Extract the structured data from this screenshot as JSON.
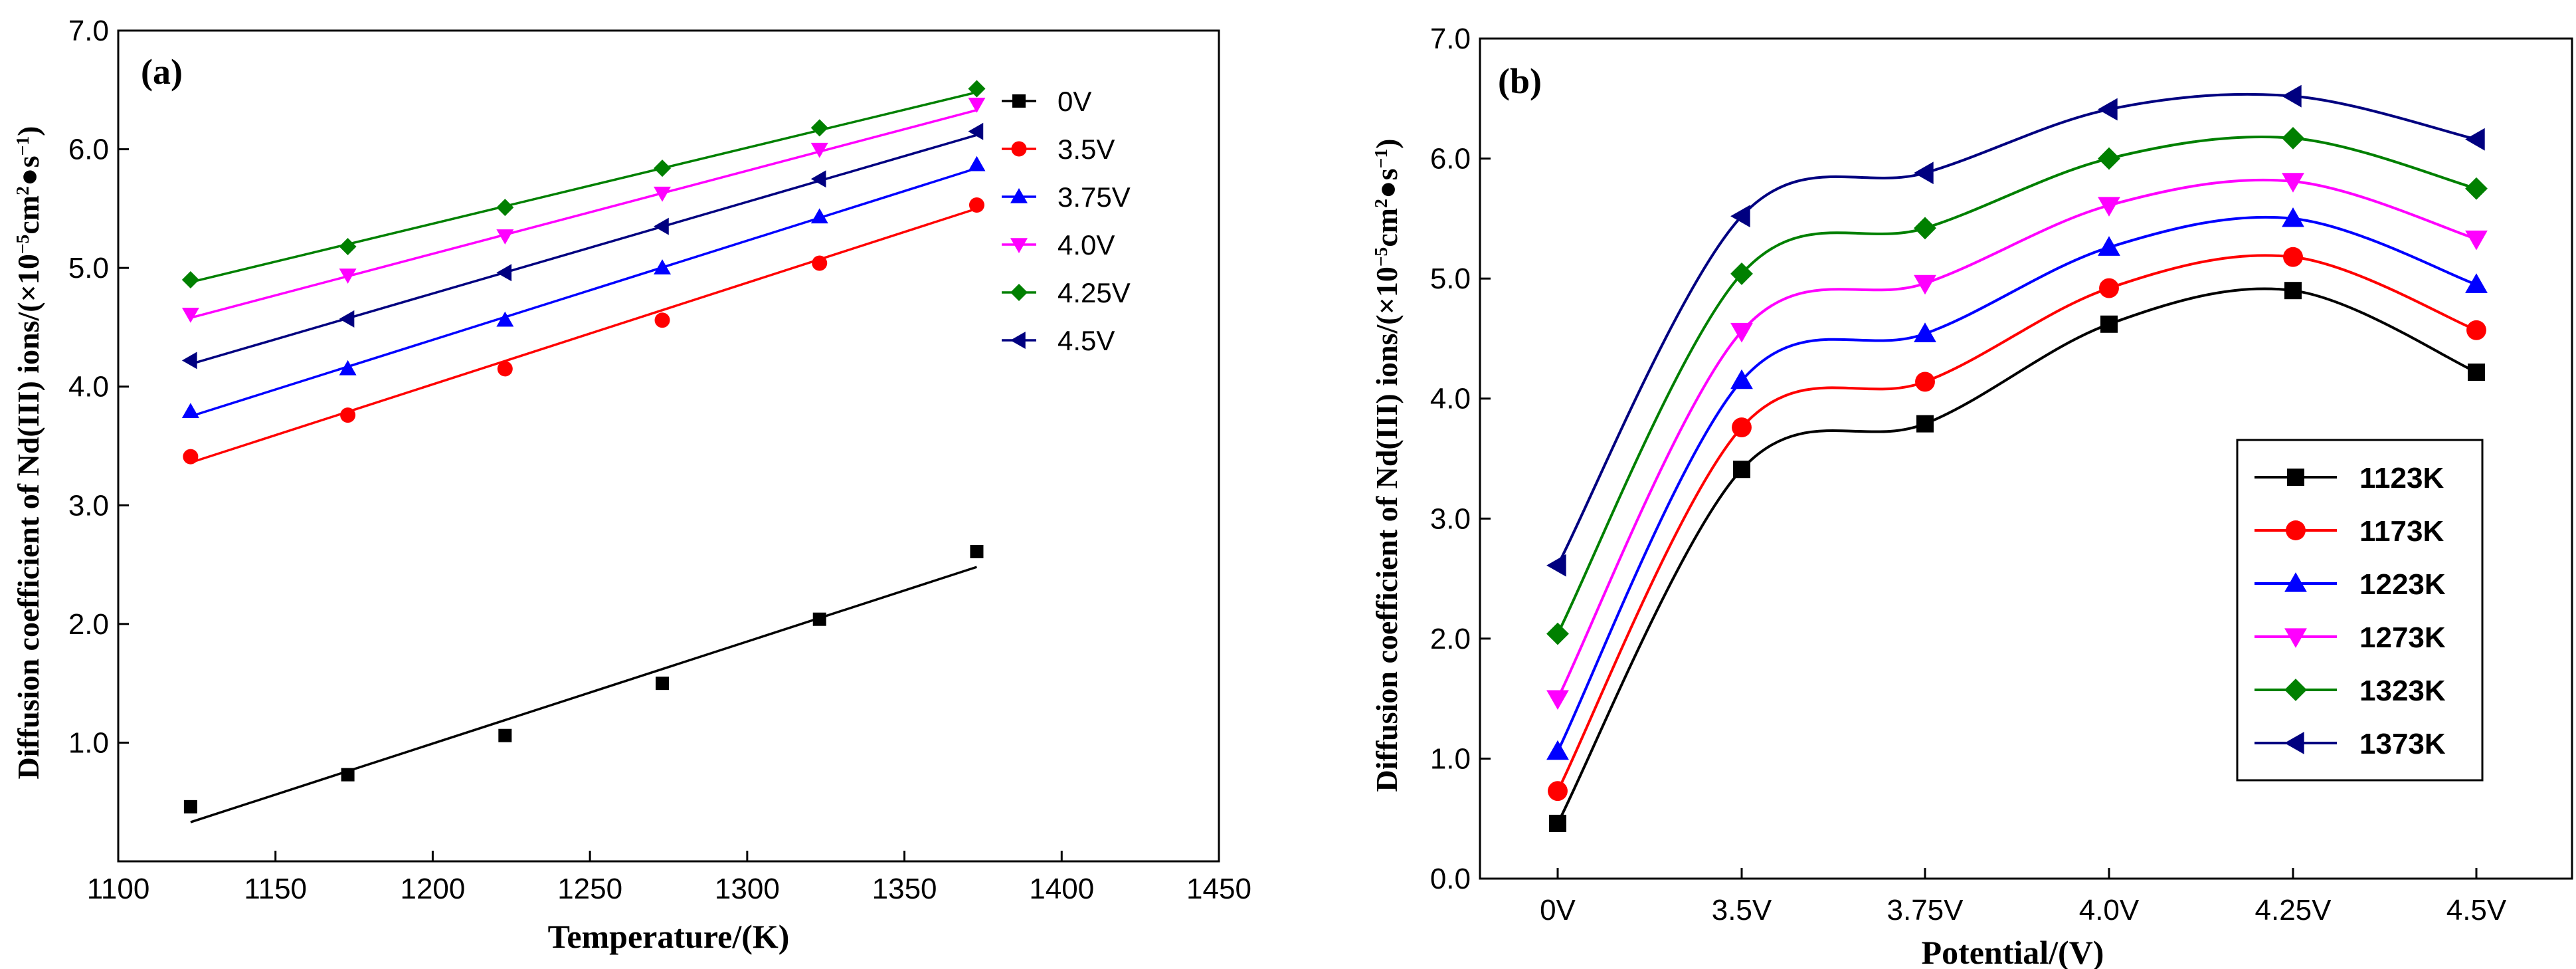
{
  "figure": {
    "colors": {
      "0V": "#000000",
      "3.5V": "#ff0000",
      "3.75V": "#0000ff",
      "4.0V": "#ff00ff",
      "4.25V": "#008000",
      "4.5V": "#000080",
      "axis": "#000000"
    }
  },
  "chart_data": [
    {
      "panel_label": "(a)",
      "type": "scatter",
      "title": "",
      "xlabel": "Temperature/(K)",
      "ylabel_html": "Diffusion coefficient of Nd(III) ions/(×10<tspan baseline-shift='super' font-size='60%'>−5</tspan>cm<tspan baseline-shift='super' font-size='60%'>2</tspan>●s<tspan baseline-shift='super' font-size='60%'>−1</tspan>)",
      "ylabel": "Diffusion coefficient of Nd(III) ions/(×10−5cm2●s−1)",
      "xlim": [
        1100,
        1450
      ],
      "ylim": [
        0,
        7.0
      ],
      "x_ticks": [
        1100,
        1150,
        1200,
        1250,
        1300,
        1350,
        1400,
        1450
      ],
      "y_ticks": [
        1.0,
        2.0,
        3.0,
        4.0,
        5.0,
        6.0,
        7.0
      ],
      "y_tick_labels": [
        "1.0",
        "2.0",
        "3.0",
        "4.0",
        "5.0",
        "6.0",
        "7.0"
      ],
      "legend_position": "top-right",
      "x": [
        1123,
        1173,
        1223,
        1273,
        1323,
        1373
      ],
      "series": [
        {
          "name": "0V",
          "color": "#000000",
          "marker": "square",
          "values": [
            0.46,
            0.73,
            1.06,
            1.5,
            2.04,
            2.61
          ],
          "fit": [
            0.33,
            2.48
          ]
        },
        {
          "name": "3.5V",
          "color": "#ff0000",
          "marker": "circle",
          "values": [
            3.41,
            3.76,
            4.15,
            4.56,
            5.04,
            5.53
          ],
          "fit": [
            3.36,
            5.5
          ]
        },
        {
          "name": "3.75V",
          "color": "#0000ff",
          "marker": "triangle-up",
          "values": [
            3.79,
            4.15,
            4.56,
            5.0,
            5.43,
            5.87
          ],
          "fit": [
            3.75,
            5.84
          ]
        },
        {
          "name": "4.0V",
          "color": "#ff00ff",
          "marker": "triangle-down",
          "values": [
            4.61,
            4.94,
            5.27,
            5.63,
            6.0,
            6.38
          ],
          "fit": [
            4.58,
            6.33
          ]
        },
        {
          "name": "4.25V",
          "color": "#008000",
          "marker": "diamond",
          "values": [
            4.9,
            5.18,
            5.51,
            5.84,
            6.18,
            6.51
          ],
          "fit": [
            4.88,
            6.48
          ]
        },
        {
          "name": "4.5V",
          "color": "#000080",
          "marker": "triangle-left",
          "values": [
            4.22,
            4.57,
            4.96,
            5.35,
            5.75,
            6.15
          ],
          "fit": [
            4.19,
            6.12
          ]
        }
      ]
    },
    {
      "panel_label": "(b)",
      "type": "line",
      "title": "",
      "xlabel": "Potential/(V)",
      "ylabel_html": "Diffusion coefficient of Nd(III) ions/(×10<tspan baseline-shift='super' font-size='60%'>−5</tspan>cm<tspan baseline-shift='super' font-size='60%'>2</tspan>●s<tspan baseline-shift='super' font-size='60%'>−1</tspan>)",
      "ylabel": "Diffusion coefficient of Nd(III) ions/(×10−5cm2●s−1)",
      "categories": [
        "0V",
        "3.5V",
        "3.75V",
        "4.0V",
        "4.25V",
        "4.5V"
      ],
      "ylim": [
        0,
        7.0
      ],
      "y_ticks": [
        0,
        1.0,
        2.0,
        3.0,
        4.0,
        5.0,
        6.0,
        7.0
      ],
      "y_tick_labels": [
        "0.0",
        "1.0",
        "2.0",
        "3.0",
        "4.0",
        "5.0",
        "6.0",
        "7.0"
      ],
      "legend_position": "bottom-right",
      "series": [
        {
          "name": "1123K",
          "color": "#000000",
          "marker": "square",
          "values": [
            0.46,
            3.41,
            3.79,
            4.62,
            4.9,
            4.22
          ]
        },
        {
          "name": "1173K",
          "color": "#ff0000",
          "marker": "circle",
          "values": [
            0.73,
            3.76,
            4.14,
            4.92,
            5.18,
            4.57
          ]
        },
        {
          "name": "1223K",
          "color": "#0000ff",
          "marker": "triangle-up",
          "values": [
            1.06,
            4.15,
            4.54,
            5.26,
            5.5,
            4.95
          ]
        },
        {
          "name": "1273K",
          "color": "#ff00ff",
          "marker": "triangle-down",
          "values": [
            1.5,
            4.56,
            4.96,
            5.61,
            5.81,
            5.33
          ]
        },
        {
          "name": "1323K",
          "color": "#008000",
          "marker": "diamond",
          "values": [
            2.04,
            5.04,
            5.42,
            6.0,
            6.17,
            5.75
          ]
        },
        {
          "name": "1373K",
          "color": "#000080",
          "marker": "triangle-left",
          "values": [
            2.61,
            5.52,
            5.88,
            6.41,
            6.52,
            6.16
          ]
        }
      ]
    }
  ]
}
